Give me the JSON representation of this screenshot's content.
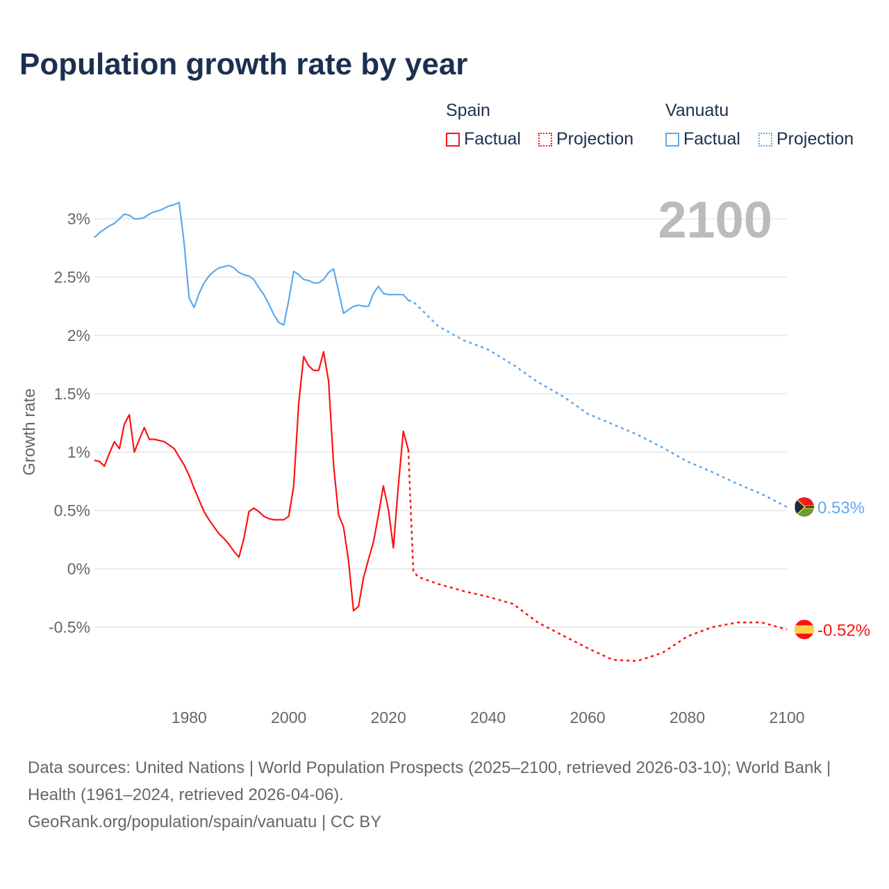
{
  "title": "Population growth rate by year",
  "legend": {
    "groups": [
      {
        "name": "Spain",
        "factual": "Factual",
        "projection": "Projection",
        "color": "#ff1010"
      },
      {
        "name": "Vanuatu",
        "factual": "Factual",
        "projection": "Projection",
        "color": "#5fa8ec"
      }
    ]
  },
  "year_display": "2100",
  "chart_data": {
    "type": "line",
    "title": "Population growth rate by year",
    "xlabel": "",
    "ylabel": "Growth rate",
    "xlim": [
      1961,
      2100
    ],
    "ylim": [
      -1.0,
      3.3
    ],
    "x_ticks": [
      "1980",
      "2000",
      "2020",
      "2040",
      "2060",
      "2080",
      "2100"
    ],
    "x_tick_values": [
      1980,
      2000,
      2020,
      2040,
      2060,
      2080,
      2100
    ],
    "y_ticks": [
      "3%",
      "2.5%",
      "2%",
      "1.5%",
      "1%",
      "0.5%",
      "0%",
      "-0.5%"
    ],
    "y_tick_values": [
      3,
      2.5,
      2,
      1.5,
      1,
      0.5,
      0,
      -0.5
    ],
    "grid": true,
    "series": [
      {
        "name": "Vanuatu",
        "color": "#5fa8ec",
        "end_label": "0.53%",
        "flag": "vanuatu-flag",
        "factual": {
          "start_year": 1961,
          "values": [
            2.84,
            2.88,
            2.91,
            2.94,
            2.96,
            3.0,
            3.04,
            3.03,
            3.0,
            3.0,
            3.01,
            3.04,
            3.06,
            3.07,
            3.09,
            3.11,
            3.12,
            3.14,
            2.79,
            2.32,
            2.24,
            2.36,
            2.45,
            2.51,
            2.55,
            2.58,
            2.59,
            2.6,
            2.58,
            2.54,
            2.52,
            2.51,
            2.48,
            2.41,
            2.35,
            2.27,
            2.18,
            2.11,
            2.09,
            2.3,
            2.55,
            2.52,
            2.48,
            2.47,
            2.45,
            2.45,
            2.48,
            2.54,
            2.57,
            2.38,
            2.19,
            2.22,
            2.25,
            2.26,
            2.25,
            2.25,
            2.36,
            2.42,
            2.36,
            2.35,
            2.35,
            2.35,
            2.35,
            2.3
          ]
        },
        "projection": {
          "years": [
            2025,
            2030,
            2035,
            2040,
            2045,
            2050,
            2055,
            2060,
            2065,
            2070,
            2075,
            2080,
            2085,
            2090,
            2095,
            2100
          ],
          "values": [
            2.29,
            2.08,
            1.96,
            1.88,
            1.75,
            1.6,
            1.48,
            1.33,
            1.24,
            1.15,
            1.04,
            0.92,
            0.83,
            0.73,
            0.64,
            0.53
          ]
        }
      },
      {
        "name": "Spain",
        "color": "#ff1010",
        "end_label": "-0.52%",
        "flag": "spain-flag",
        "factual": {
          "start_year": 1961,
          "values": [
            0.93,
            0.92,
            0.88,
            0.99,
            1.09,
            1.03,
            1.24,
            1.32,
            1.0,
            1.11,
            1.21,
            1.11,
            1.11,
            1.1,
            1.09,
            1.06,
            1.03,
            0.96,
            0.89,
            0.8,
            0.69,
            0.59,
            0.49,
            0.42,
            0.36,
            0.3,
            0.26,
            0.21,
            0.15,
            0.1,
            0.26,
            0.49,
            0.52,
            0.49,
            0.45,
            0.43,
            0.42,
            0.42,
            0.42,
            0.45,
            0.71,
            1.42,
            1.82,
            1.74,
            1.7,
            1.7,
            1.86,
            1.61,
            0.89,
            0.46,
            0.36,
            0.07,
            -0.36,
            -0.32,
            -0.08,
            0.08,
            0.23,
            0.46,
            0.71,
            0.51,
            0.18,
            0.71,
            1.18,
            1.02
          ]
        },
        "projection": {
          "years": [
            2025,
            2026,
            2030,
            2035,
            2040,
            2045,
            2050,
            2055,
            2060,
            2065,
            2070,
            2075,
            2080,
            2085,
            2090,
            2095,
            2100
          ],
          "values": [
            -0.02,
            -0.07,
            -0.13,
            -0.19,
            -0.24,
            -0.3,
            -0.46,
            -0.57,
            -0.68,
            -0.78,
            -0.79,
            -0.72,
            -0.58,
            -0.5,
            -0.46,
            -0.46,
            -0.52
          ]
        }
      }
    ]
  },
  "footer": {
    "sources": "Data sources: United Nations | World Population Prospects (2025–2100, retrieved 2026-03-10); World Bank | Health (1961–2024, retrieved 2026-04-06).",
    "credit": "GeoRank.org/population/spain/vanuatu | CC BY"
  }
}
